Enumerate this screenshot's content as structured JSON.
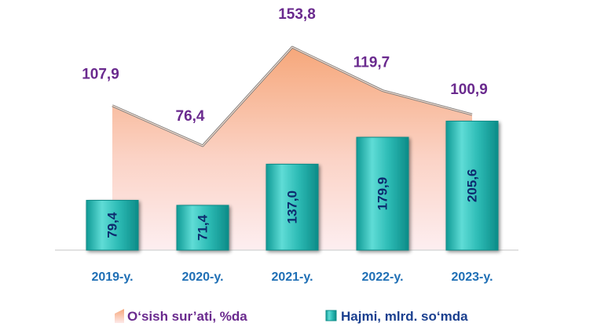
{
  "chart_data": {
    "type": "bar+area",
    "categories": [
      "2019-y.",
      "2020-y.",
      "2021-y.",
      "2022-y.",
      "2023-y."
    ],
    "series": [
      {
        "name": "O‘sish sur’ati, %da",
        "type": "area",
        "values": [
          107.9,
          76.4,
          153.8,
          119.7,
          100.9
        ],
        "labels": [
          "107,9",
          "76,4",
          "153,8",
          "119,7",
          "100,9"
        ],
        "color": "#f6a77a"
      },
      {
        "name": "Hajmi, mlrd. so‘mda",
        "type": "bar",
        "values": [
          79.4,
          71.4,
          137.0,
          179.9,
          205.6
        ],
        "labels": [
          "79,4",
          "71,4",
          "137,0",
          "179,9",
          "205,6"
        ],
        "color": "#1fb5b0"
      }
    ],
    "legend_position": "bottom",
    "grid": false
  },
  "colors": {
    "bar_top": "#7fe3de",
    "bar_mid": "#2fbdb7",
    "bar_edge": "#0c8c88",
    "area_top": "#f8cdb6",
    "area_bottom": "#fde9e9",
    "line_label": "#6a2a8e",
    "bar_label": "#0d2a6e",
    "category_label": "#1f6fb5"
  }
}
